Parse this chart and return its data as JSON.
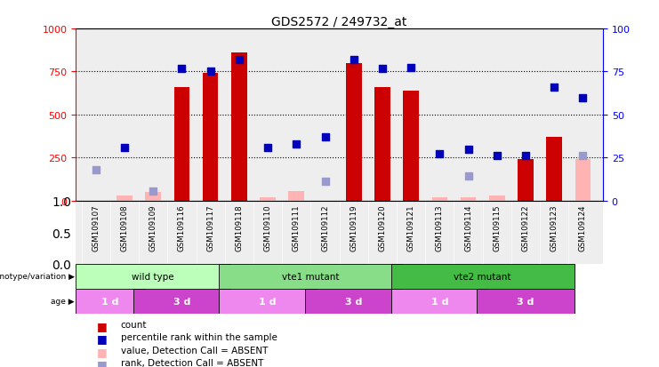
{
  "title": "GDS2572 / 249732_at",
  "samples": [
    "GSM109107",
    "GSM109108",
    "GSM109109",
    "GSM109116",
    "GSM109117",
    "GSM109118",
    "GSM109110",
    "GSM109111",
    "GSM109112",
    "GSM109119",
    "GSM109120",
    "GSM109121",
    "GSM109113",
    "GSM109114",
    "GSM109115",
    "GSM109122",
    "GSM109123",
    "GSM109124"
  ],
  "count_present": [
    false,
    false,
    false,
    true,
    true,
    true,
    false,
    false,
    false,
    true,
    true,
    true,
    false,
    false,
    false,
    true,
    true,
    false
  ],
  "count_values": [
    0,
    0,
    0,
    660,
    740,
    860,
    0,
    0,
    0,
    800,
    660,
    640,
    0,
    0,
    0,
    240,
    370,
    0
  ],
  "count_absent_values": [
    0,
    30,
    50,
    0,
    0,
    0,
    20,
    55,
    0,
    0,
    0,
    0,
    20,
    20,
    30,
    0,
    0,
    240
  ],
  "rank_present": [
    false,
    true,
    false,
    true,
    true,
    true,
    true,
    true,
    true,
    true,
    true,
    true,
    true,
    true,
    true,
    true,
    true,
    true
  ],
  "rank_values": [
    0,
    310,
    0,
    770,
    750,
    820,
    310,
    330,
    370,
    820,
    770,
    775,
    270,
    300,
    260,
    260,
    660,
    600
  ],
  "rank_absent_values": [
    180,
    0,
    55,
    0,
    0,
    0,
    0,
    0,
    110,
    0,
    0,
    0,
    0,
    140,
    0,
    0,
    0,
    260
  ],
  "ylim_left": [
    0,
    1000
  ],
  "ylim_right": [
    0,
    100
  ],
  "yticks_left": [
    0,
    250,
    500,
    750,
    1000
  ],
  "yticks_right": [
    0,
    25,
    50,
    75,
    100
  ],
  "hgrid_lines": [
    250,
    500,
    750
  ],
  "bar_color": "#cc0000",
  "bar_absent_color": "#ffb3b3",
  "rank_color": "#0000bb",
  "rank_absent_color": "#9999cc",
  "bg_color": "#eeeeee",
  "genotype_data": [
    {
      "label": "wild type",
      "start": 0,
      "end": 5,
      "color": "#bbffbb"
    },
    {
      "label": "vte1 mutant",
      "start": 5,
      "end": 11,
      "color": "#88dd88"
    },
    {
      "label": "vte2 mutant",
      "start": 11,
      "end": 17,
      "color": "#44bb44"
    }
  ],
  "age_data": [
    {
      "label": "1 d",
      "start": 0,
      "end": 2,
      "color": "#ee88ee"
    },
    {
      "label": "3 d",
      "start": 2,
      "end": 5,
      "color": "#cc44cc"
    },
    {
      "label": "1 d",
      "start": 5,
      "end": 8,
      "color": "#ee88ee"
    },
    {
      "label": "3 d",
      "start": 8,
      "end": 11,
      "color": "#cc44cc"
    },
    {
      "label": "1 d",
      "start": 11,
      "end": 14,
      "color": "#ee88ee"
    },
    {
      "label": "3 d",
      "start": 14,
      "end": 17,
      "color": "#cc44cc"
    }
  ],
  "legend_items": [
    {
      "label": "count",
      "color": "#cc0000"
    },
    {
      "label": "percentile rank within the sample",
      "color": "#0000bb"
    },
    {
      "label": "value, Detection Call = ABSENT",
      "color": "#ffb3b3"
    },
    {
      "label": "rank, Detection Call = ABSENT",
      "color": "#9999cc"
    }
  ]
}
